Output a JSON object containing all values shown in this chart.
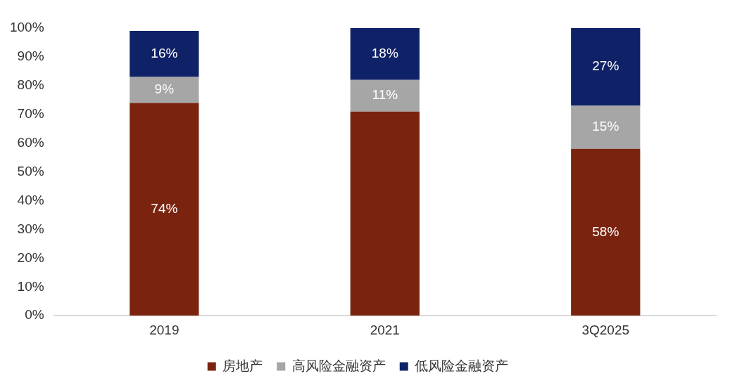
{
  "chart_data": {
    "type": "bar",
    "stacked": true,
    "categories": [
      "2019",
      "2021",
      "3Q2025"
    ],
    "series": [
      {
        "name": "房地产",
        "color": "#7a2410",
        "values": [
          74,
          71,
          58
        ],
        "value_labels": [
          "74%",
          null,
          "58%"
        ]
      },
      {
        "name": "高风险金融资产",
        "color": "#a6a6a6",
        "values": [
          9,
          11,
          15
        ],
        "value_labels": [
          "9%",
          "11%",
          "15%"
        ]
      },
      {
        "name": "低风险金融资产",
        "color": "#0f2167",
        "values": [
          16,
          18,
          27
        ],
        "value_labels": [
          "16%",
          "18%",
          "27%"
        ]
      }
    ],
    "ylim": [
      0,
      100
    ],
    "yticks": [
      {
        "value": 0,
        "label": "0%"
      },
      {
        "value": 10,
        "label": "10%"
      },
      {
        "value": 20,
        "label": "20%"
      },
      {
        "value": 30,
        "label": "30%"
      },
      {
        "value": 40,
        "label": "40%"
      },
      {
        "value": 50,
        "label": "50%"
      },
      {
        "value": 60,
        "label": "60%"
      },
      {
        "value": 70,
        "label": "70%"
      },
      {
        "value": 80,
        "label": "80%"
      },
      {
        "value": 90,
        "label": "90%"
      },
      {
        "value": 100,
        "label": "100%"
      }
    ],
    "grid": false,
    "legend": "bottom"
  }
}
